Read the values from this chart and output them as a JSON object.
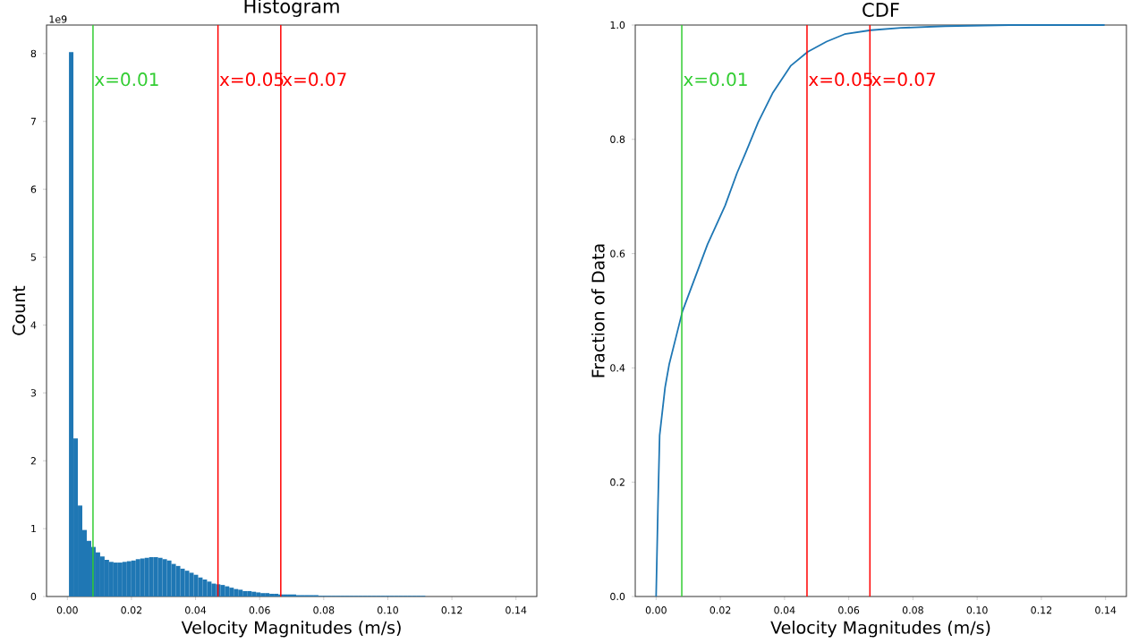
{
  "chart_data": [
    {
      "type": "histogram",
      "title": "Histogram",
      "xlabel": "Velocity Magnitudes (m/s)",
      "ylabel": "Count",
      "color": "#1f77b4",
      "bins": [
        0.0005,
        0.00189,
        0.00328,
        0.00467,
        0.00606,
        0.00745,
        0.00884,
        0.01023,
        0.01162,
        0.01301,
        0.0144,
        0.01579,
        0.01718,
        0.01857,
        0.01996,
        0.02135,
        0.02274,
        0.02413,
        0.02552,
        0.02691,
        0.0283,
        0.02969,
        0.03108,
        0.03247,
        0.03386,
        0.03525,
        0.03664,
        0.03803,
        0.03942,
        0.04081,
        0.0422,
        0.04359,
        0.04498,
        0.04637,
        0.04776,
        0.04915,
        0.05054,
        0.05193,
        0.05332,
        0.05471,
        0.0561,
        0.05749,
        0.05888,
        0.06027,
        0.06166,
        0.06305,
        0.06444,
        0.06583,
        0.06722,
        0.06861,
        0.07,
        0.07139,
        0.07278,
        0.07417,
        0.07556,
        0.07695,
        0.07834,
        0.07973,
        0.08112,
        0.08251,
        0.0839,
        0.08529,
        0.08668,
        0.08807,
        0.08946,
        0.09085,
        0.09224,
        0.09363,
        0.09502,
        0.09641,
        0.0978,
        0.09919,
        0.10058,
        0.10197,
        0.10336,
        0.10475,
        0.10614,
        0.10753,
        0.10892,
        0.11031,
        0.1117
      ],
      "values": [
        8.02,
        2.33,
        1.34,
        0.98,
        0.82,
        0.73,
        0.65,
        0.59,
        0.54,
        0.51,
        0.5,
        0.5,
        0.51,
        0.52,
        0.53,
        0.55,
        0.56,
        0.57,
        0.58,
        0.58,
        0.57,
        0.55,
        0.53,
        0.48,
        0.45,
        0.41,
        0.38,
        0.35,
        0.32,
        0.28,
        0.25,
        0.22,
        0.19,
        0.18,
        0.17,
        0.15,
        0.13,
        0.11,
        0.1,
        0.08,
        0.08,
        0.07,
        0.06,
        0.05,
        0.05,
        0.04,
        0.04,
        0.03,
        0.03,
        0.03,
        0.03,
        0.02,
        0.02,
        0.02,
        0.02,
        0.02,
        0.01,
        0.01,
        0.01,
        0.01,
        0.01,
        0.01,
        0.01,
        0.01,
        0.01,
        0.01,
        0.01,
        0.01,
        0.01,
        0.01,
        0.01,
        0.01,
        0.01,
        0.01,
        0.01,
        0.01,
        0.01,
        0.01,
        0.01,
        0.01
      ],
      "xlim": [
        -0.0065,
        0.1465
      ],
      "ylim": [
        0,
        8.42
      ],
      "xticks": [
        {
          "value": 0,
          "label": "0.00"
        },
        {
          "value": 0.02,
          "label": "0.02"
        },
        {
          "value": 0.04,
          "label": "0.04"
        },
        {
          "value": 0.06,
          "label": "0.06"
        },
        {
          "value": 0.08,
          "label": "0.08"
        },
        {
          "value": 0.1,
          "label": "0.10"
        },
        {
          "value": 0.12,
          "label": "0.12"
        },
        {
          "value": 0.14,
          "label": "0.14"
        }
      ],
      "yticks": [
        0,
        1,
        2,
        3,
        4,
        5,
        6,
        7,
        8
      ],
      "annotations": [
        "1e9"
      ],
      "ref_lines": [
        {
          "axis": "x",
          "value": 0.008,
          "label": "x=0.01",
          "color": "#32cd32"
        },
        {
          "axis": "x",
          "value": 0.047,
          "label": "x=0.05",
          "color": "#ff0000"
        },
        {
          "axis": "x",
          "value": 0.0666,
          "label": "x=0.07",
          "color": "#ff0000"
        }
      ]
    },
    {
      "type": "line",
      "title": "CDF",
      "xlabel": "Velocity Magnitudes (m/s)",
      "ylabel": "Fraction of Data",
      "color": "#1f77b4",
      "x": [
        0.0,
        0.0006,
        0.0011,
        0.0028,
        0.0041,
        0.0062,
        0.0082,
        0.016,
        0.0215,
        0.0252,
        0.028,
        0.0318,
        0.0364,
        0.042,
        0.0472,
        0.0531,
        0.0587,
        0.0669,
        0.0763,
        0.09,
        0.11,
        0.1397
      ],
      "values": [
        0.0,
        0.163,
        0.282,
        0.366,
        0.407,
        0.454,
        0.499,
        0.616,
        0.684,
        0.741,
        0.778,
        0.83,
        0.882,
        0.929,
        0.953,
        0.971,
        0.984,
        0.991,
        0.995,
        0.998,
        1.0,
        1.0
      ],
      "xlim": [
        -0.0065,
        0.1465
      ],
      "ylim": [
        0,
        1
      ],
      "xticks": [
        {
          "value": 0,
          "label": "0.00"
        },
        {
          "value": 0.02,
          "label": "0.02"
        },
        {
          "value": 0.04,
          "label": "0.04"
        },
        {
          "value": 0.06,
          "label": "0.06"
        },
        {
          "value": 0.08,
          "label": "0.08"
        },
        {
          "value": 0.1,
          "label": "0.10"
        },
        {
          "value": 0.12,
          "label": "0.12"
        },
        {
          "value": 0.14,
          "label": "0.14"
        }
      ],
      "yticks": [
        {
          "value": 0,
          "label": "0.0"
        },
        {
          "value": 0.2,
          "label": "0.2"
        },
        {
          "value": 0.4,
          "label": "0.4"
        },
        {
          "value": 0.6,
          "label": "0.6"
        },
        {
          "value": 0.8,
          "label": "0.8"
        },
        {
          "value": 1,
          "label": "1.0"
        }
      ],
      "ref_lines": [
        {
          "axis": "x",
          "value": 0.008,
          "label": "x=0.01",
          "color": "#32cd32"
        },
        {
          "axis": "x",
          "value": 0.047,
          "label": "x=0.05",
          "color": "#ff0000"
        },
        {
          "axis": "x",
          "value": 0.0666,
          "label": "x=0.07",
          "color": "#ff0000"
        }
      ]
    }
  ]
}
